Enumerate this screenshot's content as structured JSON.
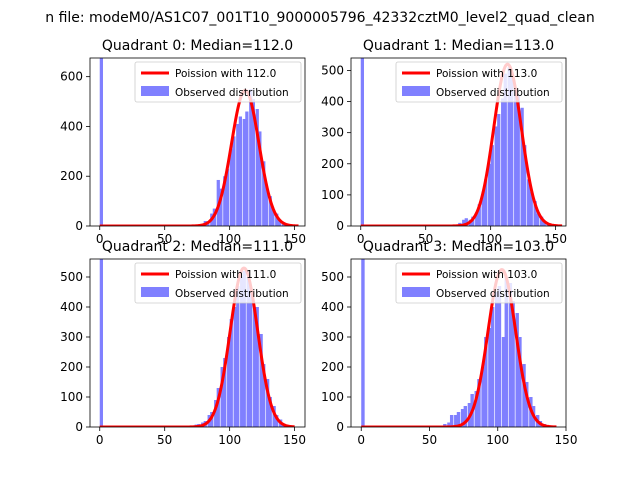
{
  "figure": {
    "suptitle": "n file: modeM0/AS1C07_001T10_9000005796_42332cztM0_level2_quad_clean",
    "legend_labels": {
      "fit_prefix": "Poission with ",
      "observed": "Observed distribution"
    },
    "colors": {
      "hist": "#8080ff",
      "fit": "#ff0000",
      "axis": "#000000"
    }
  },
  "chart_data": [
    {
      "type": "bar",
      "title": "Quadrant 0: Median=112.0",
      "median": 112.0,
      "legend_fit": "Poission with 112.0",
      "legend_observed": "Observed distribution",
      "xlim": [
        -7.5,
        158
      ],
      "ylim": [
        0,
        675
      ],
      "xticks": [
        0,
        50,
        100,
        150
      ],
      "yticks": [
        0,
        200,
        400,
        600
      ],
      "bin_width": 2.5,
      "bins": [
        [
          0,
          675
        ],
        [
          77,
          5
        ],
        [
          80,
          20
        ],
        [
          82,
          10
        ],
        [
          85,
          50
        ],
        [
          87,
          70
        ],
        [
          90,
          185
        ],
        [
          92,
          150
        ],
        [
          95,
          200
        ],
        [
          97,
          230
        ],
        [
          100,
          310
        ],
        [
          102,
          360
        ],
        [
          105,
          410
        ],
        [
          107,
          440
        ],
        [
          110,
          430
        ],
        [
          112,
          460
        ],
        [
          115,
          550
        ],
        [
          117,
          510
        ],
        [
          120,
          470
        ],
        [
          122,
          380
        ],
        [
          125,
          260
        ],
        [
          127,
          160
        ],
        [
          130,
          120
        ],
        [
          132,
          70
        ],
        [
          135,
          50
        ],
        [
          137,
          25
        ],
        [
          140,
          15
        ],
        [
          142,
          8
        ],
        [
          145,
          3
        ]
      ],
      "fit_amplitude": 545,
      "fit_sigma": 10.58,
      "fit_x_range": [
        0,
        153
      ]
    },
    {
      "type": "bar",
      "title": "Quadrant 1: Median=113.0",
      "median": 113.0,
      "legend_fit": "Poission with 113.0",
      "legend_observed": "Observed distribution",
      "xlim": [
        -7.5,
        158
      ],
      "ylim": [
        0,
        540
      ],
      "xticks": [
        0,
        50,
        100,
        150
      ],
      "yticks": [
        0,
        100,
        200,
        300,
        400,
        500
      ],
      "bin_width": 2.5,
      "bins": [
        [
          0,
          540
        ],
        [
          75,
          10
        ],
        [
          78,
          20
        ],
        [
          80,
          25
        ],
        [
          83,
          20
        ],
        [
          85,
          30
        ],
        [
          88,
          40
        ],
        [
          90,
          70
        ],
        [
          93,
          110
        ],
        [
          95,
          150
        ],
        [
          98,
          200
        ],
        [
          100,
          260
        ],
        [
          103,
          320
        ],
        [
          105,
          360
        ],
        [
          108,
          410
        ],
        [
          110,
          490
        ],
        [
          113,
          510
        ],
        [
          115,
          480
        ],
        [
          118,
          440
        ],
        [
          120,
          420
        ],
        [
          123,
          380
        ],
        [
          125,
          260
        ],
        [
          128,
          150
        ],
        [
          130,
          110
        ],
        [
          133,
          80
        ],
        [
          135,
          40
        ],
        [
          138,
          30
        ],
        [
          140,
          15
        ],
        [
          143,
          8
        ],
        [
          145,
          5
        ],
        [
          148,
          3
        ]
      ],
      "fit_amplitude": 520,
      "fit_sigma": 10.63,
      "fit_x_range": [
        0,
        155
      ]
    },
    {
      "type": "bar",
      "title": "Quadrant 2: Median=111.0",
      "median": 111.0,
      "legend_fit": "Poission with 111.0",
      "legend_observed": "Observed distribution",
      "xlim": [
        -7.5,
        158
      ],
      "ylim": [
        0,
        560
      ],
      "xticks": [
        0,
        50,
        100,
        150
      ],
      "yticks": [
        0,
        100,
        200,
        300,
        400,
        500
      ],
      "bin_width": 2.5,
      "bins": [
        [
          0,
          560
        ],
        [
          70,
          5
        ],
        [
          73,
          8
        ],
        [
          75,
          10
        ],
        [
          78,
          15
        ],
        [
          80,
          20
        ],
        [
          83,
          40
        ],
        [
          85,
          50
        ],
        [
          88,
          90
        ],
        [
          90,
          130
        ],
        [
          93,
          200
        ],
        [
          95,
          230
        ],
        [
          98,
          300
        ],
        [
          100,
          360
        ],
        [
          103,
          400
        ],
        [
          105,
          470
        ],
        [
          108,
          500
        ],
        [
          110,
          520
        ],
        [
          113,
          500
        ],
        [
          115,
          450
        ],
        [
          118,
          400
        ],
        [
          120,
          400
        ],
        [
          123,
          310
        ],
        [
          125,
          210
        ],
        [
          128,
          160
        ],
        [
          130,
          100
        ],
        [
          133,
          70
        ],
        [
          135,
          40
        ],
        [
          138,
          25
        ],
        [
          140,
          12
        ],
        [
          143,
          5
        ]
      ],
      "fit_amplitude": 530,
      "fit_sigma": 10.54,
      "fit_x_range": [
        0,
        150
      ]
    },
    {
      "type": "bar",
      "title": "Quadrant 3: Median=103.0",
      "median": 103.0,
      "legend_fit": "Poission with 103.0",
      "legend_observed": "Observed distribution",
      "xlim": [
        -7.5,
        150
      ],
      "ylim": [
        0,
        560
      ],
      "xticks": [
        0,
        50,
        100,
        150
      ],
      "yticks": [
        0,
        100,
        200,
        300,
        400,
        500
      ],
      "bin_width": 2.5,
      "bins": [
        [
          0,
          560
        ],
        [
          15,
          5
        ],
        [
          50,
          5
        ],
        [
          60,
          10
        ],
        [
          63,
          15
        ],
        [
          65,
          40
        ],
        [
          68,
          40
        ],
        [
          70,
          50
        ],
        [
          73,
          60
        ],
        [
          75,
          70
        ],
        [
          78,
          80
        ],
        [
          80,
          110
        ],
        [
          83,
          120
        ],
        [
          85,
          160
        ],
        [
          88,
          200
        ],
        [
          90,
          300
        ],
        [
          93,
          330
        ],
        [
          95,
          400
        ],
        [
          98,
          450
        ],
        [
          100,
          470
        ],
        [
          103,
          300
        ],
        [
          105,
          500
        ],
        [
          108,
          480
        ],
        [
          110,
          420
        ],
        [
          113,
          380
        ],
        [
          115,
          300
        ],
        [
          118,
          210
        ],
        [
          120,
          150
        ],
        [
          123,
          100
        ],
        [
          125,
          70
        ],
        [
          128,
          40
        ],
        [
          130,
          20
        ],
        [
          133,
          10
        ],
        [
          135,
          5
        ],
        [
          138,
          3
        ],
        [
          140,
          2
        ]
      ],
      "fit_amplitude": 525,
      "fit_sigma": 10.15,
      "fit_x_range": [
        0,
        143
      ]
    }
  ]
}
